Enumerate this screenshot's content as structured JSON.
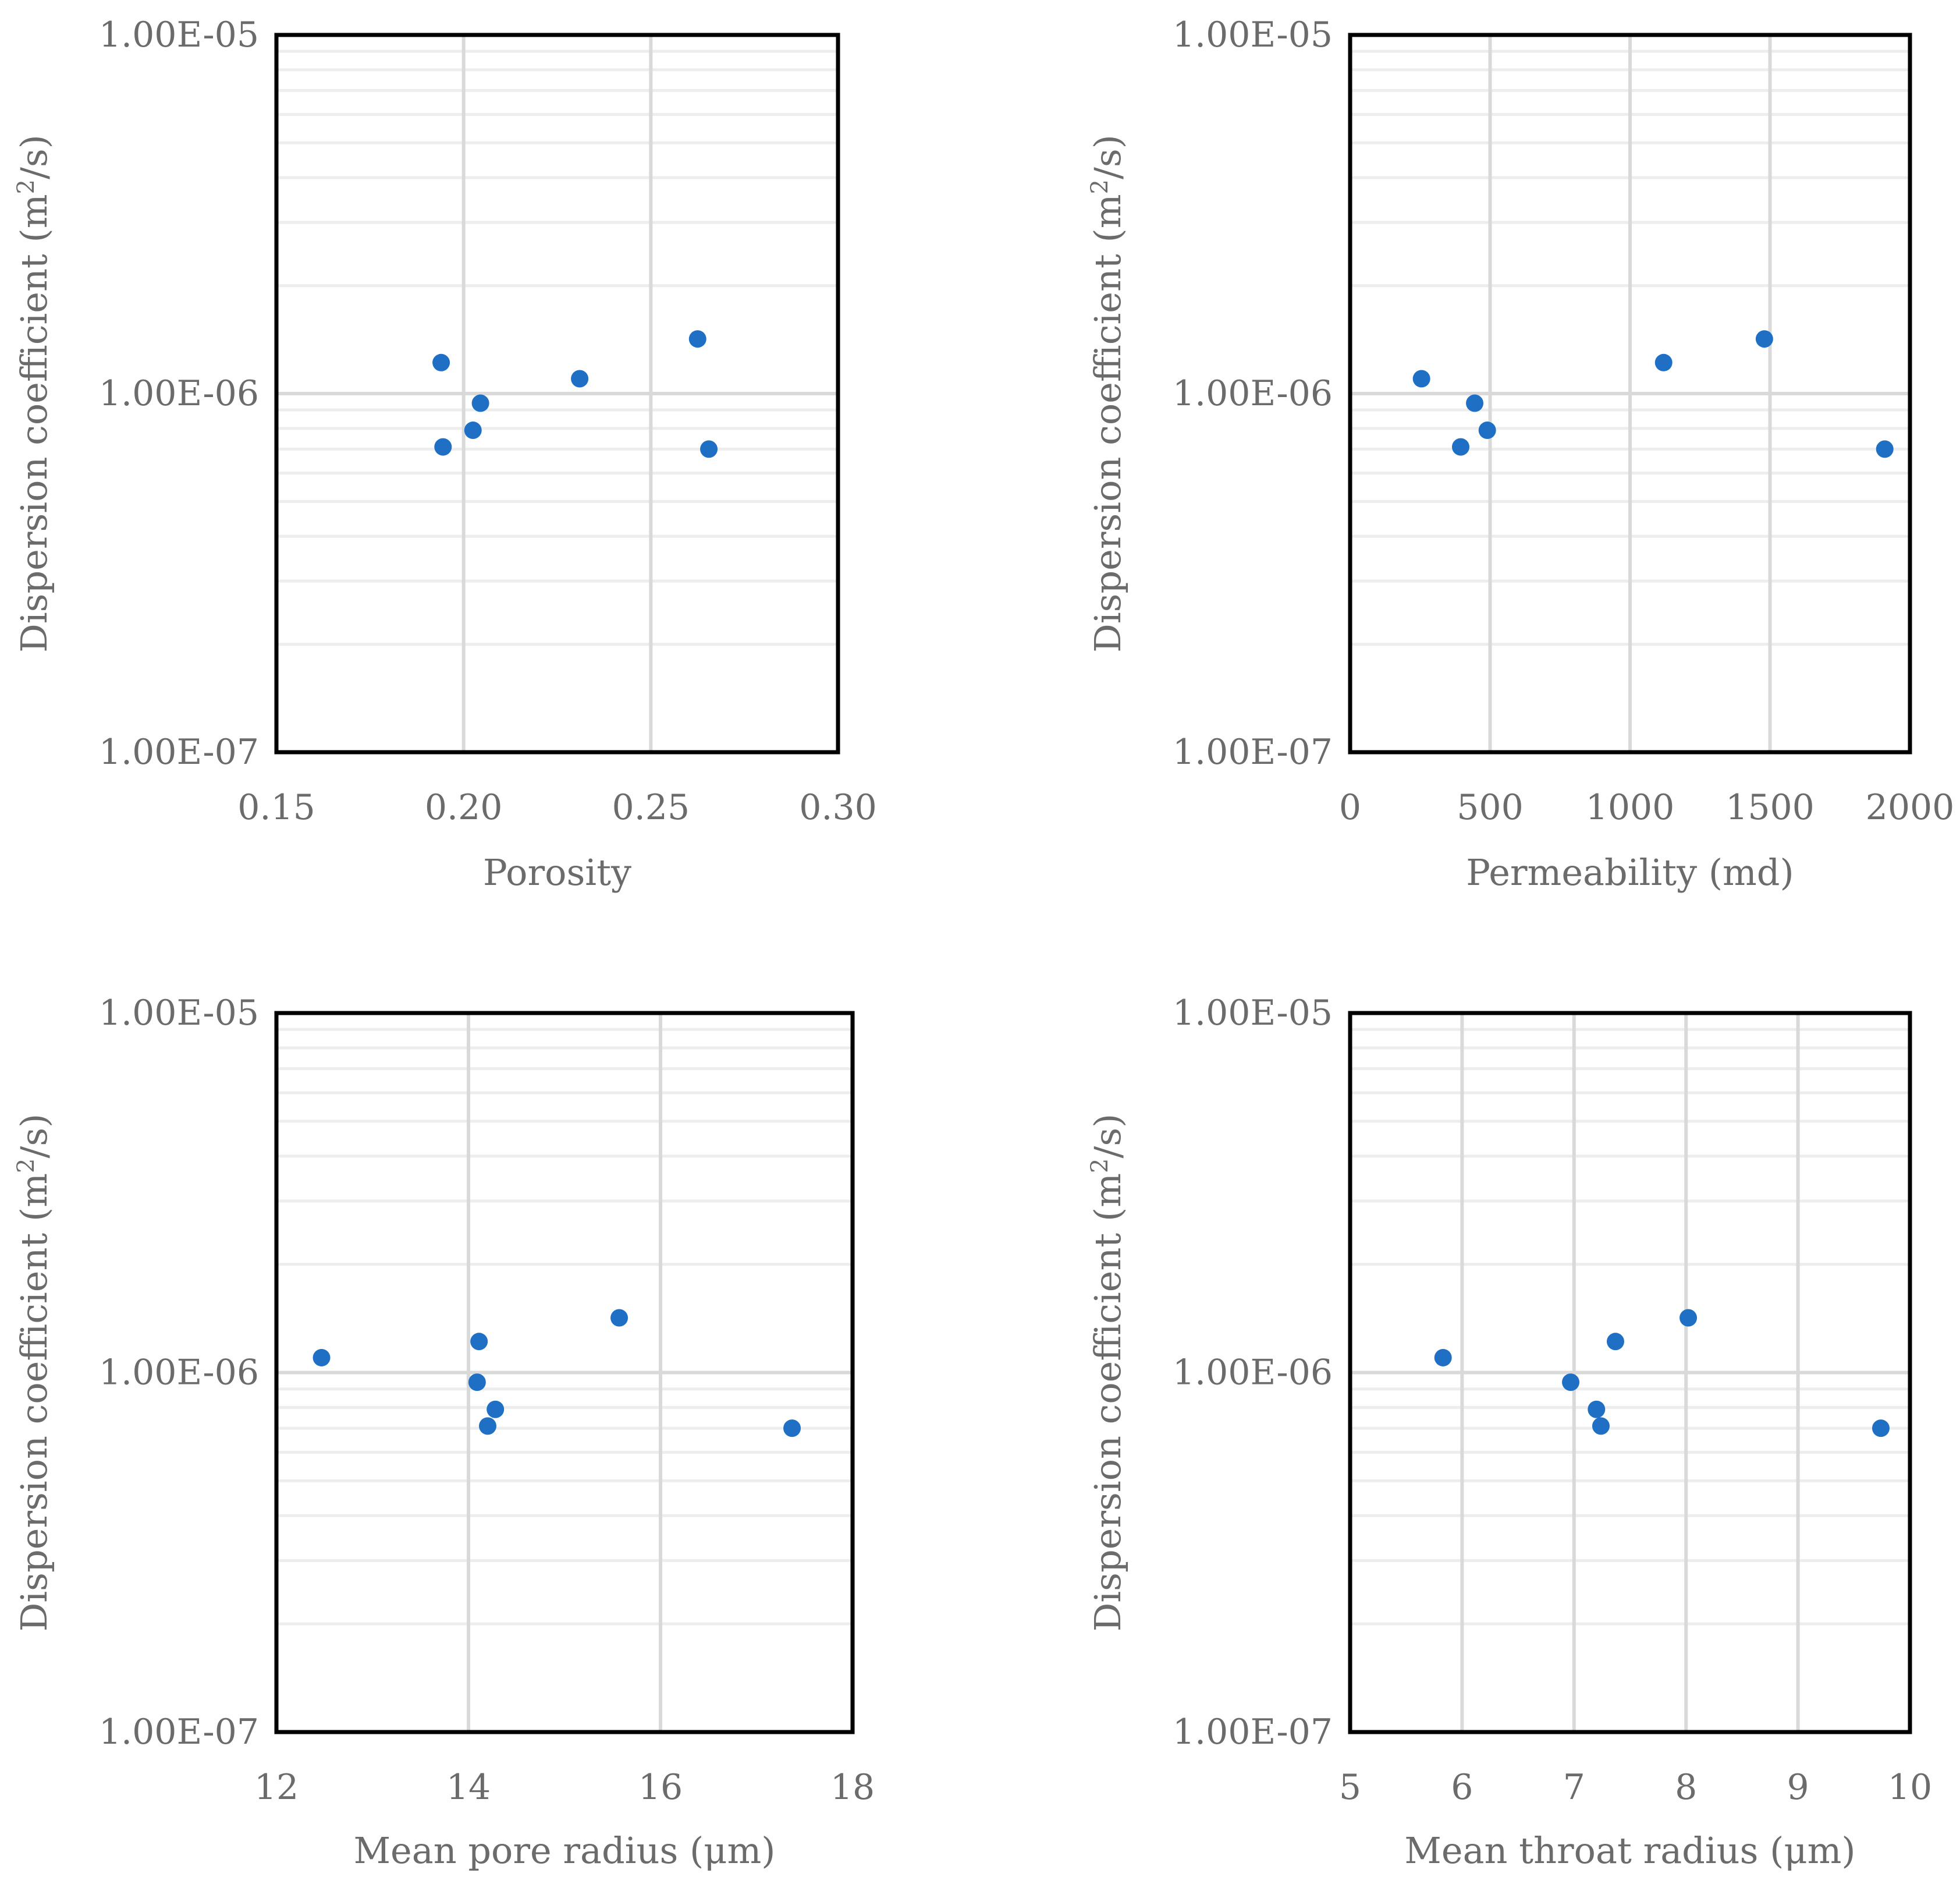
{
  "colors": {
    "marker": "#1f6fc5",
    "frame": "#000000",
    "major_grid": "#d9d9d9",
    "minor_grid": "#ededed",
    "text": "#6b6b6b"
  },
  "chart_data": [
    {
      "type": "scatter",
      "xlabel": "Porosity",
      "ylabel_main": "Dispersion coefficient (m",
      "ylabel_sup": "2",
      "ylabel_tail": "/s)",
      "xlim": [
        0.15,
        0.3
      ],
      "xticks": [
        0.15,
        0.2,
        0.25,
        0.3
      ],
      "xtick_labels": [
        "0.15",
        "0.20",
        "0.25",
        "0.30"
      ],
      "yscale": "log",
      "ylim": [
        1e-07,
        1e-05
      ],
      "yticks": [
        1e-07,
        1e-06,
        1e-05
      ],
      "ytick_labels": [
        "1.00E-07",
        "1.00E-06",
        "1.00E-05"
      ],
      "grid": true,
      "x": [
        0.194,
        0.1945,
        0.2025,
        0.2045,
        0.231,
        0.2625,
        0.2655
      ],
      "y": [
        1.22e-06,
        7.1e-07,
        7.9e-07,
        9.4e-07,
        1.1e-06,
        1.42e-06,
        7e-07
      ]
    },
    {
      "type": "scatter",
      "xlabel": "Permeability (md)",
      "ylabel_main": "Dispersion coefficient (m",
      "ylabel_sup": "2",
      "ylabel_tail": "/s)",
      "xlim": [
        0,
        2000
      ],
      "xticks": [
        0,
        500,
        1000,
        1500,
        2000
      ],
      "xtick_labels": [
        "0",
        "500",
        "1000",
        "1500",
        "2000"
      ],
      "yscale": "log",
      "ylim": [
        1e-07,
        1e-05
      ],
      "yticks": [
        1e-07,
        1e-06,
        1e-05
      ],
      "ytick_labels": [
        "1.00E-07",
        "1.00E-06",
        "1.00E-05"
      ],
      "grid": true,
      "x": [
        255,
        395,
        445,
        490,
        1120,
        1480,
        1910
      ],
      "y": [
        1.1e-06,
        7.1e-07,
        9.4e-07,
        7.9e-07,
        1.22e-06,
        1.42e-06,
        7e-07
      ]
    },
    {
      "type": "scatter",
      "xlabel": "Mean pore radius (μm)",
      "ylabel_main": "Dispersion coefficient (m",
      "ylabel_sup": "2",
      "ylabel_tail": "/s)",
      "xlim": [
        12,
        18
      ],
      "xticks": [
        12,
        14,
        16,
        18
      ],
      "xtick_labels": [
        "12",
        "14",
        "16",
        "18"
      ],
      "yscale": "log",
      "ylim": [
        1e-07,
        1e-05
      ],
      "yticks": [
        1e-07,
        1e-06,
        1e-05
      ],
      "ytick_labels": [
        "1.00E-07",
        "1.00E-06",
        "1.00E-05"
      ],
      "grid": true,
      "x": [
        12.47,
        14.09,
        14.11,
        14.2,
        14.28,
        15.57,
        17.37
      ],
      "y": [
        1.1e-06,
        9.4e-07,
        1.22e-06,
        7.1e-07,
        7.9e-07,
        1.42e-06,
        7e-07
      ]
    },
    {
      "type": "scatter",
      "xlabel": "Mean throat radius (μm)",
      "ylabel_main": "Dispersion coefficient (m",
      "ylabel_sup": "2",
      "ylabel_tail": "/s)",
      "xlim": [
        5,
        10
      ],
      "xticks": [
        5,
        6,
        7,
        8,
        9,
        10
      ],
      "xtick_labels": [
        "5",
        "6",
        "7",
        "8",
        "9",
        "10"
      ],
      "yscale": "log",
      "ylim": [
        1e-07,
        1e-05
      ],
      "yticks": [
        1e-07,
        1e-06,
        1e-05
      ],
      "ytick_labels": [
        "1.00E-07",
        "1.00E-06",
        "1.00E-05"
      ],
      "grid": true,
      "x": [
        5.83,
        6.97,
        7.2,
        7.24,
        7.37,
        8.02,
        9.74
      ],
      "y": [
        1.1e-06,
        9.4e-07,
        7.9e-07,
        7.1e-07,
        1.22e-06,
        1.42e-06,
        7e-07
      ]
    }
  ]
}
